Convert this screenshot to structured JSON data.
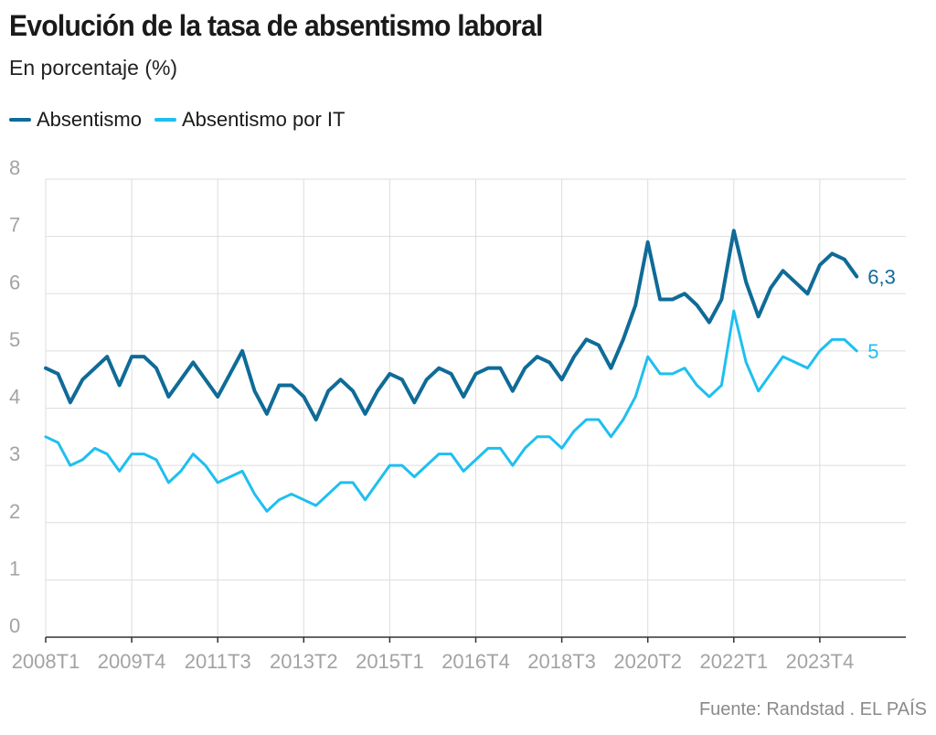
{
  "title": "Evolución de la tasa de absentismo laboral",
  "subtitle": "En porcentaje (%)",
  "source": "Fuente: Randstad . EL PAÍS",
  "colors": {
    "absentismo": "#0f6b97",
    "absentismo_it": "#1ebff0",
    "grid": "#dddddd",
    "axis": "#333333",
    "tick": "#a3a3a3"
  },
  "chart_data": {
    "type": "line",
    "title": "Evolución de la tasa de absentismo laboral",
    "subtitle": "En porcentaje (%)",
    "xlabel": "",
    "ylabel": "",
    "ylim": [
      0,
      8
    ],
    "yticks": [
      0,
      1,
      2,
      3,
      4,
      5,
      6,
      7,
      8
    ],
    "grid": true,
    "legend": "top-left",
    "x_tick_labels": [
      "2008T1",
      "2009T4",
      "2011T3",
      "2013T2",
      "2015T1",
      "2016T4",
      "2018T3",
      "2020T2",
      "2022T1",
      "2023T4"
    ],
    "categories": [
      "2008T1",
      "2008T2",
      "2008T3",
      "2008T4",
      "2009T1",
      "2009T2",
      "2009T3",
      "2009T4",
      "2010T1",
      "2010T2",
      "2010T3",
      "2010T4",
      "2011T1",
      "2011T2",
      "2011T3",
      "2011T4",
      "2012T1",
      "2012T2",
      "2012T3",
      "2012T4",
      "2013T1",
      "2013T2",
      "2013T3",
      "2013T4",
      "2014T1",
      "2014T2",
      "2014T3",
      "2014T4",
      "2015T1",
      "2015T2",
      "2015T3",
      "2015T4",
      "2016T1",
      "2016T2",
      "2016T3",
      "2016T4",
      "2017T1",
      "2017T2",
      "2017T3",
      "2017T4",
      "2018T1",
      "2018T2",
      "2018T3",
      "2018T4",
      "2019T1",
      "2019T2",
      "2019T3",
      "2019T4",
      "2020T1",
      "2020T2",
      "2020T3",
      "2020T4",
      "2021T1",
      "2021T2",
      "2021T3",
      "2021T4",
      "2022T1",
      "2022T2",
      "2022T3",
      "2022T4",
      "2023T1",
      "2023T2",
      "2023T3",
      "2023T4",
      "2024T1",
      "2024T2",
      "2024T3"
    ],
    "series": [
      {
        "name": "Absentismo",
        "end_label": "6,3",
        "values": [
          4.7,
          4.6,
          4.1,
          4.5,
          4.7,
          4.9,
          4.4,
          4.9,
          4.9,
          4.7,
          4.2,
          4.5,
          4.8,
          4.5,
          4.2,
          4.6,
          5.0,
          4.3,
          3.9,
          4.4,
          4.4,
          4.2,
          3.8,
          4.3,
          4.5,
          4.3,
          3.9,
          4.3,
          4.6,
          4.5,
          4.1,
          4.5,
          4.7,
          4.6,
          4.2,
          4.6,
          4.7,
          4.7,
          4.3,
          4.7,
          4.9,
          4.8,
          4.5,
          4.9,
          5.2,
          5.1,
          4.7,
          5.2,
          5.8,
          6.9,
          5.9,
          5.9,
          6.0,
          5.8,
          5.5,
          5.9,
          7.1,
          6.2,
          5.6,
          6.1,
          6.4,
          6.2,
          6.0,
          6.5,
          6.7,
          6.6,
          6.3
        ]
      },
      {
        "name": "Absentismo por IT",
        "end_label": "5",
        "values": [
          3.5,
          3.4,
          3.0,
          3.1,
          3.3,
          3.2,
          2.9,
          3.2,
          3.2,
          3.1,
          2.7,
          2.9,
          3.2,
          3.0,
          2.7,
          2.8,
          2.9,
          2.5,
          2.2,
          2.4,
          2.5,
          2.4,
          2.3,
          2.5,
          2.7,
          2.7,
          2.4,
          2.7,
          3.0,
          3.0,
          2.8,
          3.0,
          3.2,
          3.2,
          2.9,
          3.1,
          3.3,
          3.3,
          3.0,
          3.3,
          3.5,
          3.5,
          3.3,
          3.6,
          3.8,
          3.8,
          3.5,
          3.8,
          4.2,
          4.9,
          4.6,
          4.6,
          4.7,
          4.4,
          4.2,
          4.4,
          5.7,
          4.8,
          4.3,
          4.6,
          4.9,
          4.8,
          4.7,
          5.0,
          5.2,
          5.2,
          5.0
        ]
      }
    ]
  }
}
